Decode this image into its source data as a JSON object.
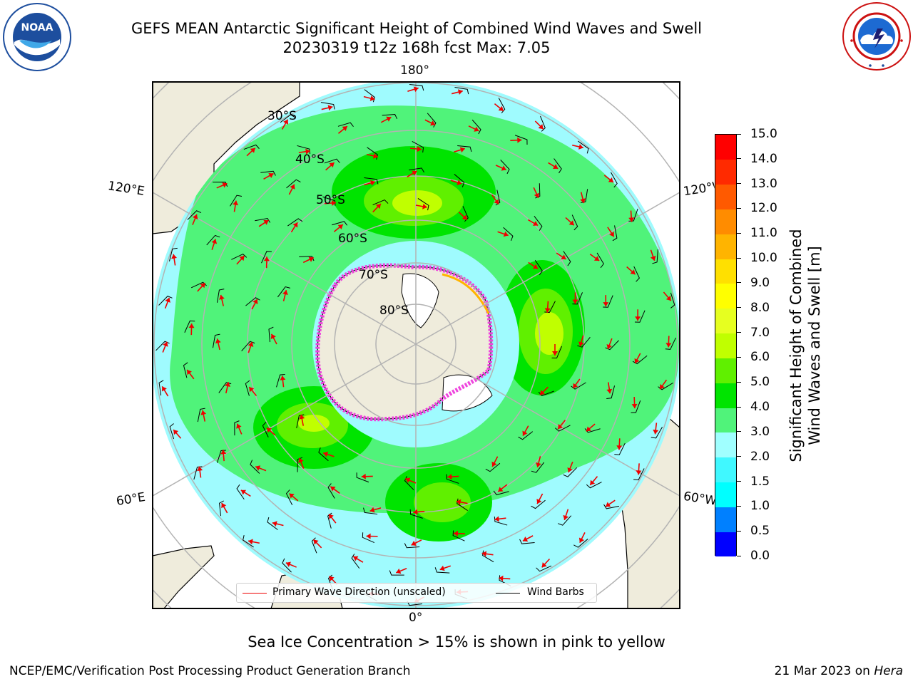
{
  "title": {
    "line1": "GEFS MEAN Antarctic Significant Height of Combined Wind Waves and Swell",
    "line2": "20230319 t12z 168h fcst   Max: 7.05"
  },
  "logos": {
    "left": {
      "name": "noaa-logo",
      "text": "NOAA"
    },
    "right": {
      "name": "nws-logo"
    }
  },
  "map": {
    "longitude_labels": {
      "top": "180°",
      "bottom": "0°",
      "upper_left": "120°E",
      "upper_right": "120°W",
      "lower_left": "60°E",
      "lower_right": "60°W"
    },
    "latitude_labels": [
      "30°S",
      "40°S",
      "50°S",
      "60°S",
      "70°S",
      "80°S"
    ],
    "colors": {
      "land": "#efecdc",
      "ocean_ring": "#9ffbfe",
      "grid": "#b3b3b3",
      "ice": "#ee44dd",
      "arrow": "#ee0000"
    }
  },
  "legend": {
    "items": [
      {
        "label": "Primary Wave Direction (unscaled)",
        "color": "#ee0000"
      },
      {
        "label": "Wind Barbs",
        "color": "#000000"
      }
    ]
  },
  "colorbar": {
    "title_line1": "Significant Height of Combined",
    "title_line2": "Wind Waves and Swell [m]",
    "ticks": [
      "0.0",
      "0.5",
      "1.0",
      "1.5",
      "2.0",
      "3.0",
      "4.0",
      "5.0",
      "6.0",
      "7.0",
      "8.0",
      "9.0",
      "10.0",
      "11.0",
      "12.0",
      "13.0",
      "14.0",
      "15.0"
    ],
    "colors": [
      "#0000ff",
      "#0080ff",
      "#00ffff",
      "#40f8ff",
      "#a0ffff",
      "#50f37a",
      "#00e400",
      "#60f000",
      "#c0ff00",
      "#e6ff20",
      "#ffff00",
      "#ffe000",
      "#ffb400",
      "#ff8c00",
      "#ff5a00",
      "#ff2a00",
      "#ff0000"
    ]
  },
  "footer": {
    "note": "Sea Ice Concentration > 15% is shown in pink to yellow",
    "credit": "NCEP/EMC/Verification Post Processing Product Generation Branch",
    "date_prefix": "21 Mar 2023 on ",
    "date_host": "Hera"
  }
}
